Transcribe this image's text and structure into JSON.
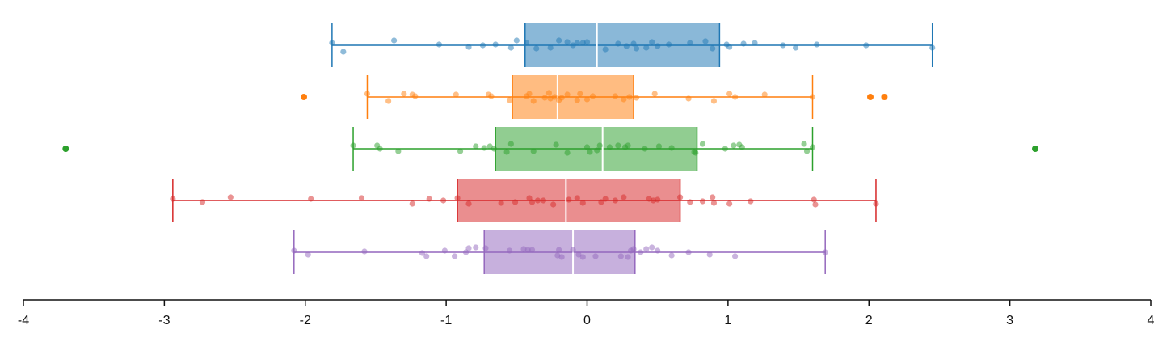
{
  "chart_data": {
    "type": "boxplot",
    "orientation": "horizontal",
    "title": "",
    "xlabel": "",
    "ylabel": "",
    "xlim": [
      -4,
      4
    ],
    "xticks": [
      "-4",
      "-3",
      "-2",
      "-1",
      "0",
      "1",
      "2",
      "3",
      "4"
    ],
    "grid": false,
    "legend": "none",
    "series": [
      {
        "color": "#1f77b4",
        "whisker_low": -1.81,
        "q1": -0.44,
        "median": 0.07,
        "q3": 0.94,
        "whisker_high": 2.45,
        "outliers": [],
        "points": [
          -1.81,
          -1.73,
          -1.37,
          -1.05,
          -0.84,
          -0.74,
          -0.65,
          -0.54,
          -0.5,
          -0.43,
          -0.36,
          -0.26,
          -0.2,
          -0.14,
          -0.1,
          -0.07,
          -0.03,
          0.0,
          0.13,
          0.22,
          0.28,
          0.33,
          0.35,
          0.42,
          0.46,
          0.5,
          0.58,
          0.73,
          0.84,
          0.89,
          0.99,
          1.01,
          1.11,
          1.19,
          1.39,
          1.48,
          1.63,
          1.98,
          2.45
        ],
        "point_jitter": [
          -3,
          8,
          -6,
          -1,
          2,
          0,
          -1,
          3,
          -6,
          -3,
          4,
          3,
          -6,
          -4,
          0,
          -3,
          -3,
          -4,
          5,
          -2,
          1,
          -2,
          4,
          3,
          -4,
          1,
          -1,
          -3,
          -5,
          4,
          -1,
          2,
          -2,
          -3,
          0,
          3,
          -1,
          0,
          3
        ]
      },
      {
        "color": "#ff7f0e",
        "whisker_low": -1.56,
        "q1": -0.53,
        "median": -0.21,
        "q3": 0.33,
        "whisker_high": 1.6,
        "outliers": [
          -2.01,
          2.01,
          2.11
        ],
        "points": [
          -1.56,
          -1.41,
          -1.3,
          -1.24,
          -1.22,
          -0.93,
          -0.7,
          -0.68,
          -0.55,
          -0.43,
          -0.41,
          -0.38,
          -0.3,
          -0.27,
          -0.26,
          -0.23,
          -0.2,
          -0.18,
          -0.14,
          -0.07,
          -0.05,
          0.0,
          0.04,
          0.2,
          0.26,
          0.3,
          0.35,
          0.48,
          0.72,
          0.9,
          1.01,
          1.05,
          1.26,
          1.6
        ],
        "point_jitter": [
          -4,
          5,
          -4,
          -3,
          -1,
          -3,
          -3,
          -1,
          4,
          -1,
          -4,
          5,
          1,
          -5,
          2,
          0,
          4,
          1,
          -3,
          4,
          -4,
          3,
          -1,
          -1,
          3,
          0,
          1,
          -4,
          2,
          5,
          -4,
          0,
          -3,
          0
        ]
      },
      {
        "color": "#2ca02c",
        "whisker_low": -1.66,
        "q1": -0.65,
        "median": 0.11,
        "q3": 0.78,
        "whisker_high": 1.6,
        "outliers": [
          -3.7,
          3.18
        ],
        "points": [
          -1.66,
          -1.49,
          -1.47,
          -1.34,
          -0.9,
          -0.79,
          -0.73,
          -0.69,
          -0.66,
          -0.57,
          -0.54,
          -0.38,
          -0.22,
          -0.14,
          0.0,
          0.02,
          0.07,
          0.09,
          0.16,
          0.22,
          0.27,
          0.29,
          0.41,
          0.51,
          0.6,
          0.76,
          0.77,
          0.82,
          0.98,
          1.04,
          1.08,
          1.1,
          1.54,
          1.56,
          1.6
        ],
        "point_jitter": [
          -4,
          -4,
          0,
          3,
          3,
          -3,
          -1,
          -3,
          0,
          4,
          -6,
          3,
          -5,
          5,
          -2,
          4,
          2,
          -4,
          -2,
          -4,
          -2,
          -4,
          0,
          -3,
          -1,
          4,
          5,
          -6,
          0,
          -4,
          -5,
          -2,
          -6,
          3,
          -2
        ]
      },
      {
        "color": "#d62728",
        "whisker_low": -2.94,
        "q1": -0.92,
        "median": -0.15,
        "q3": 0.66,
        "whisker_high": 2.05,
        "outliers": [],
        "points": [
          -2.94,
          -2.73,
          -2.53,
          -1.96,
          -1.6,
          -1.24,
          -1.12,
          -1.02,
          -0.92,
          -0.84,
          -0.61,
          -0.51,
          -0.41,
          -0.39,
          -0.35,
          -0.31,
          -0.24,
          -0.13,
          -0.07,
          -0.03,
          0.1,
          0.13,
          0.2,
          0.26,
          0.44,
          0.47,
          0.5,
          0.66,
          0.73,
          0.82,
          0.89,
          0.9,
          1.01,
          1.16,
          1.61,
          1.62,
          2.05
        ],
        "point_jitter": [
          -2,
          2,
          -4,
          -2,
          -3,
          4,
          -2,
          0,
          -3,
          4,
          3,
          2,
          -3,
          2,
          0,
          0,
          5,
          -1,
          -3,
          3,
          2,
          -2,
          0,
          -4,
          -2,
          0,
          -1,
          -4,
          2,
          1,
          -4,
          3,
          4,
          1,
          -1,
          5,
          4
        ]
      },
      {
        "color": "#9467bd",
        "whisker_low": -2.08,
        "q1": -0.73,
        "median": -0.1,
        "q3": 0.34,
        "whisker_high": 1.69,
        "outliers": [],
        "points": [
          -2.08,
          -1.98,
          -1.58,
          -1.17,
          -1.14,
          -1.01,
          -0.94,
          -0.86,
          -0.84,
          -0.79,
          -0.72,
          -0.55,
          -0.45,
          -0.42,
          -0.39,
          -0.21,
          -0.2,
          -0.18,
          -0.1,
          -0.06,
          -0.03,
          0.06,
          0.24,
          0.29,
          0.31,
          0.33,
          0.38,
          0.42,
          0.46,
          0.5,
          0.6,
          0.72,
          0.87,
          1.05,
          1.69
        ],
        "point_jitter": [
          -2,
          3,
          -1,
          1,
          5,
          -2,
          5,
          0,
          -5,
          -6,
          -5,
          -2,
          -4,
          -3,
          -3,
          4,
          -3,
          6,
          -3,
          3,
          6,
          5,
          5,
          6,
          -2,
          -4,
          0,
          -4,
          -6,
          -2,
          4,
          0,
          3,
          5,
          0
        ]
      }
    ]
  }
}
